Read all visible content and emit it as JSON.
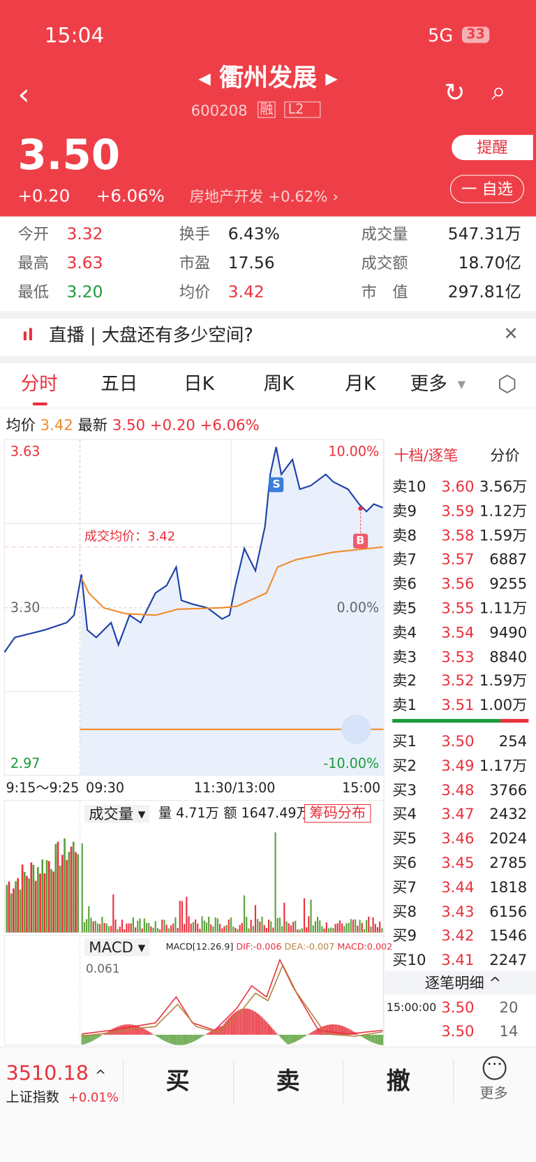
{
  "status_bar": {
    "time": "15:04",
    "network": "5G",
    "battery": "33"
  },
  "header": {
    "title": "衢州发展",
    "code": "600208",
    "tags": [
      "融",
      "L2"
    ]
  },
  "quote": {
    "price": "3.50",
    "change": "+0.20",
    "change_pct": "+6.06%",
    "sector": "房地产开发",
    "sector_change": "+0.62%",
    "alert_button": "提醒",
    "watch_button": "一 自选"
  },
  "stats": [
    [
      {
        "label": "今开",
        "value": "3.32"
      },
      {
        "label": "换手",
        "value": "6.43%"
      },
      {
        "label": "成交量",
        "value": "547.31万"
      }
    ],
    [
      {
        "label": "最高",
        "value": "3.63"
      },
      {
        "label": "市盈",
        "value": "17.56"
      },
      {
        "label": "成交额",
        "value": "18.70亿"
      }
    ],
    [
      {
        "label": "最低",
        "value": "3.20"
      },
      {
        "label": "均价",
        "value": "3.42"
      },
      {
        "label": "市　值",
        "value": "297.81亿"
      }
    ]
  ],
  "news": {
    "text": "直播 | 大盘还有多少空间?"
  },
  "tabs": [
    "分时",
    "五日",
    "日K",
    "周K",
    "月K",
    "更多"
  ],
  "summary": {
    "avg_label": "均价",
    "avg": "3.42",
    "latest_label": "最新",
    "latest": "3.50",
    "change": "+0.20",
    "change_pct": "+6.06%"
  },
  "chart": {
    "y_top": "3.63",
    "y_mid": "3.30",
    "y_bottom": "2.97",
    "pct_top": "10.00%",
    "pct_mid": "0.00%",
    "pct_bottom": "-10.00%",
    "avg_price_label": "成交均价：3.42",
    "marker_s": "S",
    "marker_b": "B",
    "time_labels": [
      "9:15～9:25",
      "09:30",
      "11:30/13:00",
      "15:00"
    ]
  },
  "volume": {
    "title": "成交量",
    "volume": "量 4.71万",
    "amount": "额 1647.49万",
    "button": "筹码分布"
  },
  "macd": {
    "title": "MACD",
    "params": "MACD[12.26.9]",
    "dif": "DIF:-0.006",
    "dea": "DEA:-0.007",
    "macd": "MACD:0.002",
    "scale": "0.061"
  },
  "order_book": {
    "title": "十档/逐笔",
    "tab": "分价",
    "asks": [
      {
        "label": "卖10",
        "price": "3.60",
        "volume": "3.56万"
      },
      {
        "label": "卖9",
        "price": "3.59",
        "volume": "1.12万"
      },
      {
        "label": "卖8",
        "price": "3.58",
        "volume": "1.59万"
      },
      {
        "label": "卖7",
        "price": "3.57",
        "volume": "6887"
      },
      {
        "label": "卖6",
        "price": "3.56",
        "volume": "9255"
      },
      {
        "label": "卖5",
        "price": "3.55",
        "volume": "1.11万"
      },
      {
        "label": "卖4",
        "price": "3.54",
        "volume": "9490"
      },
      {
        "label": "卖3",
        "price": "3.53",
        "volume": "8840"
      },
      {
        "label": "卖2",
        "price": "3.52",
        "volume": "1.59万"
      },
      {
        "label": "卖1",
        "price": "3.51",
        "volume": "1.00万"
      }
    ],
    "bids": [
      {
        "label": "买1",
        "price": "3.50",
        "volume": "254"
      },
      {
        "label": "买2",
        "price": "3.49",
        "volume": "1.17万"
      },
      {
        "label": "买3",
        "price": "3.48",
        "volume": "3766"
      },
      {
        "label": "买4",
        "price": "3.47",
        "volume": "2432"
      },
      {
        "label": "买5",
        "price": "3.46",
        "volume": "2024"
      },
      {
        "label": "买6",
        "price": "3.45",
        "volume": "2785"
      },
      {
        "label": "买7",
        "price": "3.44",
        "volume": "1818"
      },
      {
        "label": "买8",
        "price": "3.43",
        "volume": "6156"
      },
      {
        "label": "买9",
        "price": "3.42",
        "volume": "1546"
      },
      {
        "label": "买10",
        "price": "3.41",
        "volume": "2247"
      }
    ],
    "detail_title": "逐笔明细",
    "trades": [
      {
        "time": "15:00:00",
        "price": "3.50",
        "volume": "20"
      },
      {
        "price": "3.50",
        "volume": "14"
      }
    ]
  },
  "bottom_bar": {
    "index_value": "3510.18",
    "index_name": "上证指数",
    "index_change": "+0.01%",
    "buttons": [
      "买",
      "卖",
      "撤"
    ],
    "more": "更多"
  }
}
